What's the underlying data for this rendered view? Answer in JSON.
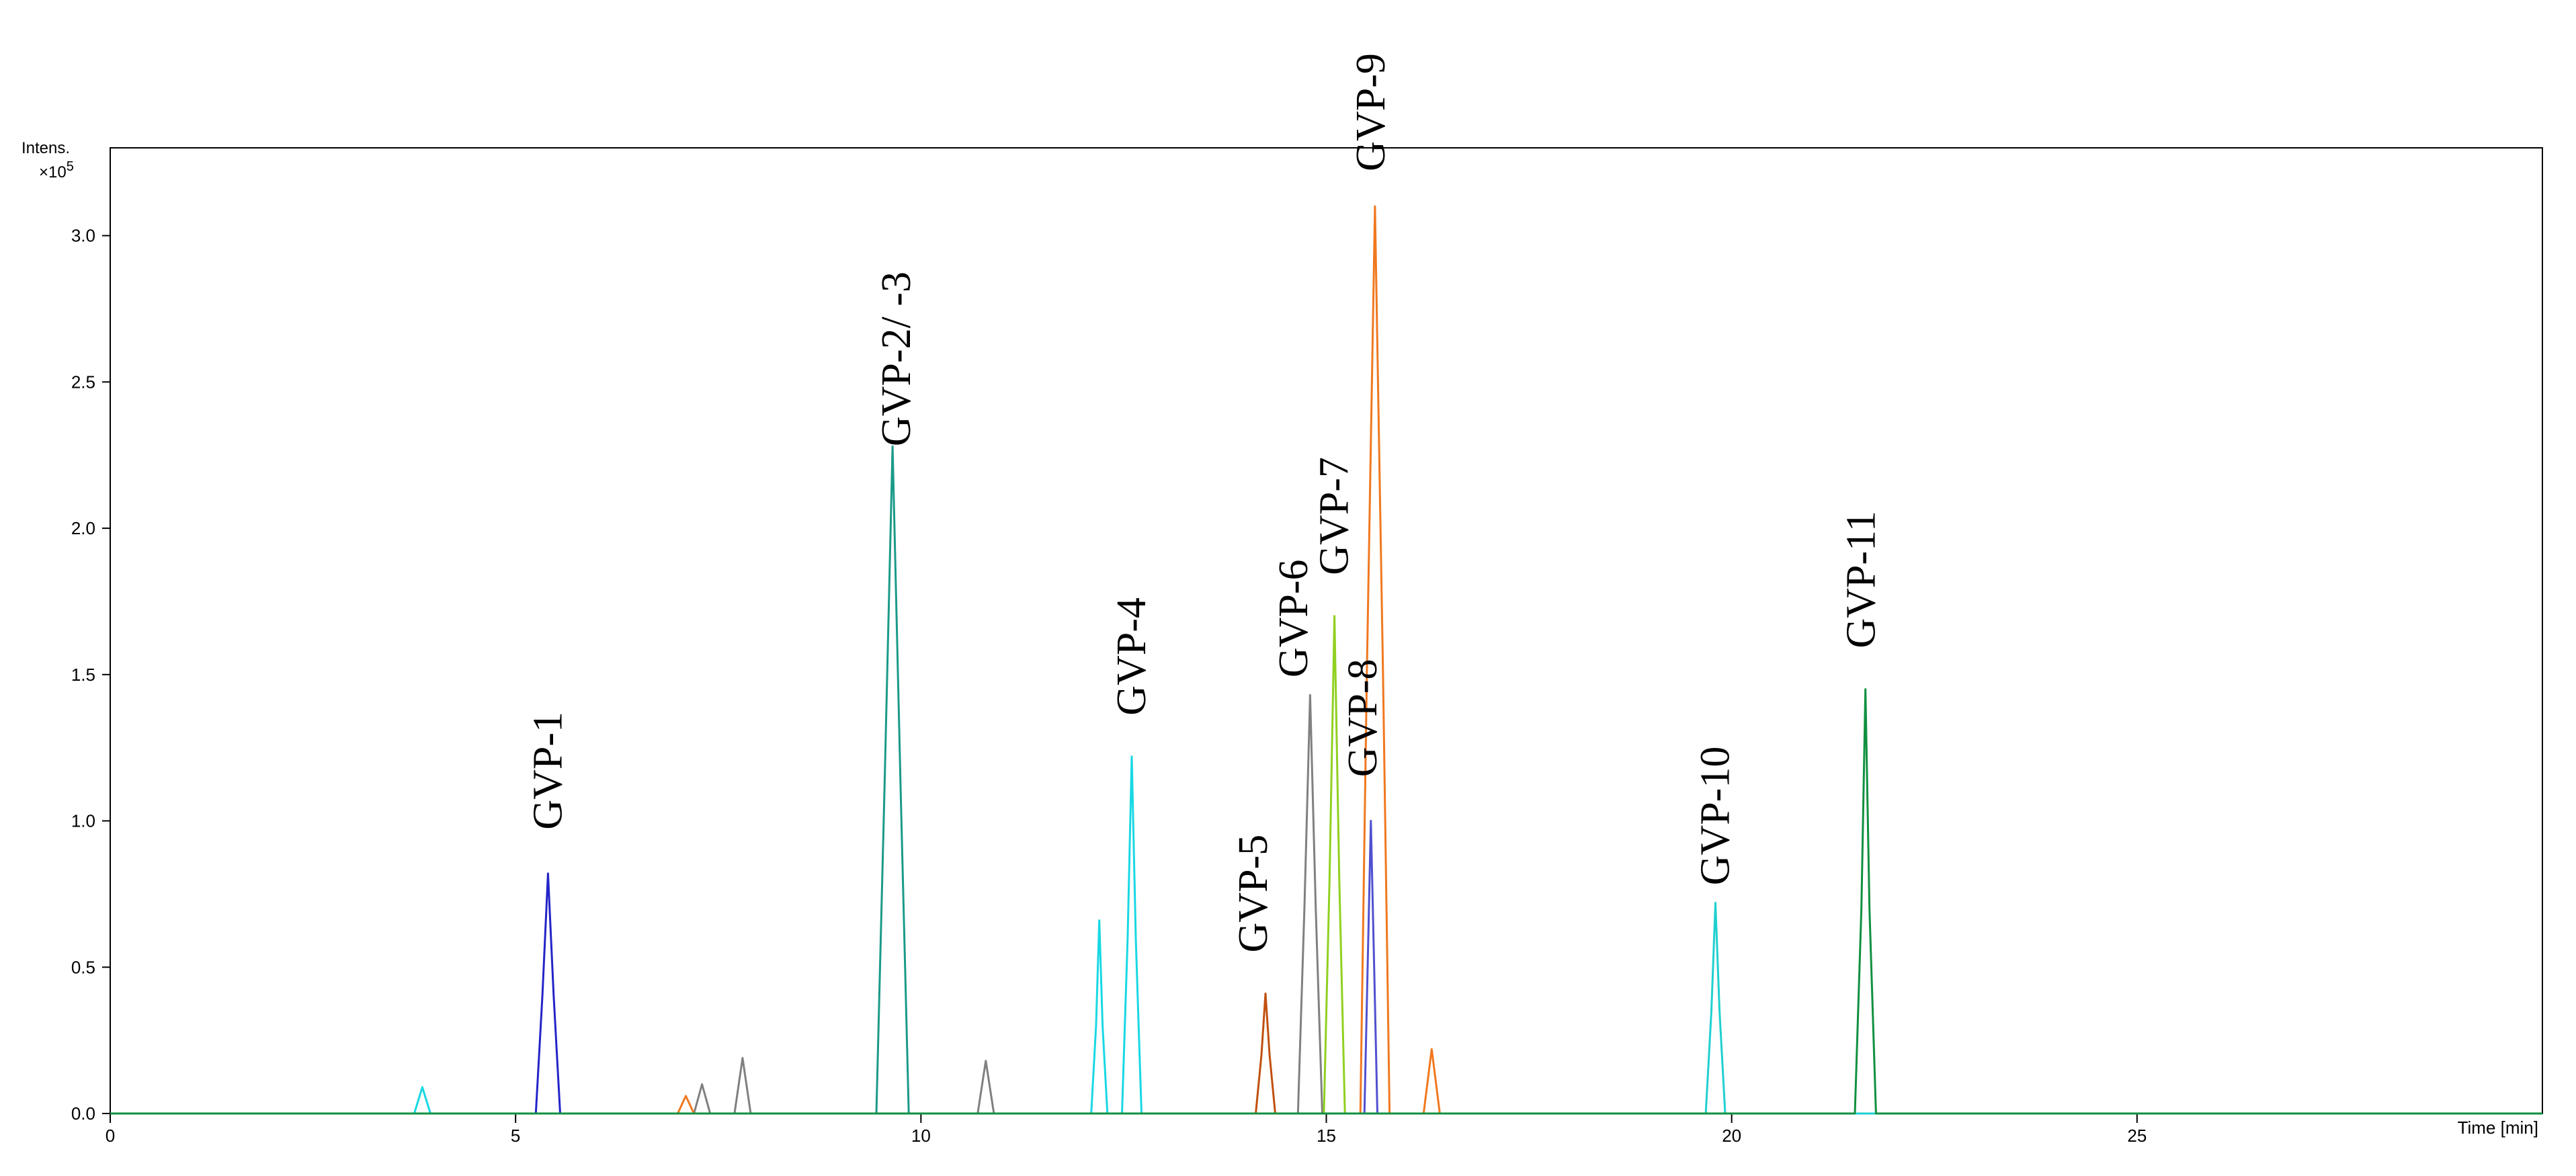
{
  "chart_data": {
    "type": "line",
    "y_label": "Intens.",
    "y_multiplier": "×10",
    "y_exponent": "5",
    "x_label": "Time [min]",
    "xlim": [
      0,
      30
    ],
    "xticks": [
      0,
      5,
      10,
      15,
      20,
      25
    ],
    "ylim": [
      0,
      3.3
    ],
    "yticks": [
      {
        "value": 0,
        "label": "0.0"
      },
      0.5,
      {
        "value": 1,
        "label": "1.0"
      },
      1.5,
      {
        "value": 2,
        "label": "2.0"
      },
      2.5,
      {
        "value": 3,
        "label": "3.0"
      }
    ],
    "grid": false,
    "series": [
      {
        "color": "#2424c8",
        "x": [
          0,
          5.25,
          5.33,
          5.4,
          5.47,
          5.55,
          30
        ],
        "values": [
          0,
          0,
          0.4,
          0.82,
          0.4,
          0,
          0
        ]
      },
      {
        "color": "#1a9a88",
        "x": [
          0,
          9.45,
          9.55,
          9.65,
          9.75,
          9.85,
          30
        ],
        "values": [
          0,
          0,
          1.1,
          2.28,
          1.1,
          0,
          0
        ]
      },
      {
        "color": "#18d8e4",
        "x": [
          0,
          3.75,
          3.85,
          3.95,
          12.1,
          12.16,
          12.2,
          12.24,
          12.3,
          12.48,
          12.55,
          12.6,
          12.65,
          12.72,
          30
        ],
        "values": [
          0,
          0,
          0.09,
          0,
          0,
          0.3,
          0.66,
          0.3,
          0,
          0,
          0.6,
          1.22,
          0.6,
          0,
          0
        ]
      },
      {
        "color": "#c05010",
        "x": [
          0,
          14.13,
          14.2,
          14.25,
          14.3,
          14.37,
          30
        ],
        "values": [
          0,
          0,
          0.2,
          0.41,
          0.2,
          0,
          0
        ]
      },
      {
        "color": "#808080",
        "x": [
          0,
          7.2,
          7.3,
          7.4,
          7.7,
          7.8,
          7.9,
          10.7,
          10.8,
          10.9,
          14.65,
          14.73,
          14.8,
          14.87,
          14.95,
          30
        ],
        "values": [
          0,
          0,
          0.1,
          0,
          0,
          0.19,
          0,
          0,
          0.18,
          0,
          0,
          0.7,
          1.43,
          0.7,
          0,
          0
        ]
      },
      {
        "color": "#90d020",
        "x": [
          0,
          14.97,
          15.04,
          15.1,
          15.16,
          15.23,
          30
        ],
        "values": [
          0,
          0,
          0.8,
          1.7,
          0.8,
          0,
          0
        ]
      },
      {
        "color": "#f07820",
        "x": [
          0,
          7.0,
          7.1,
          7.2,
          15.42,
          15.5,
          15.6,
          15.7,
          15.78,
          16.2,
          16.3,
          16.4,
          30
        ],
        "values": [
          0,
          0,
          0.06,
          0,
          0,
          1.5,
          3.1,
          1.5,
          0,
          0,
          0.22,
          0,
          0
        ]
      },
      {
        "color": "#5050d0",
        "x": [
          0,
          15.47,
          15.51,
          15.55,
          15.59,
          15.63,
          30
        ],
        "values": [
          0,
          0,
          0.5,
          1.0,
          0.5,
          0,
          0
        ]
      },
      {
        "color": "#20d0d0",
        "x": [
          0,
          19.68,
          19.75,
          19.8,
          19.85,
          19.92,
          30
        ],
        "values": [
          0,
          0,
          0.35,
          0.72,
          0.35,
          0,
          0
        ]
      },
      {
        "color": "#109040",
        "x": [
          0,
          21.52,
          21.6,
          21.65,
          21.7,
          21.78,
          30
        ],
        "values": [
          0,
          0,
          0.7,
          1.45,
          0.7,
          0,
          0
        ]
      }
    ],
    "annotations": [
      {
        "text": "GVP-1",
        "x": 5.4,
        "y": 0.97
      },
      {
        "text": "GVP-2/ -3",
        "x": 9.7,
        "y": 2.28
      },
      {
        "text": "GVP-4",
        "x": 12.6,
        "y": 1.36
      },
      {
        "text": "GVP-5",
        "x": 14.1,
        "y": 0.55
      },
      {
        "text": "GVP-6",
        "x": 14.6,
        "y": 1.49
      },
      {
        "text": "GVP-7",
        "x": 15.1,
        "y": 1.84
      },
      {
        "text": "GVP-8",
        "x": 15.45,
        "y": 1.15
      },
      {
        "text": "GVP-9",
        "x": 15.55,
        "y": 3.22
      },
      {
        "text": "GVP-10",
        "x": 19.8,
        "y": 0.78
      },
      {
        "text": "GVP-11",
        "x": 21.6,
        "y": 1.59
      }
    ]
  }
}
